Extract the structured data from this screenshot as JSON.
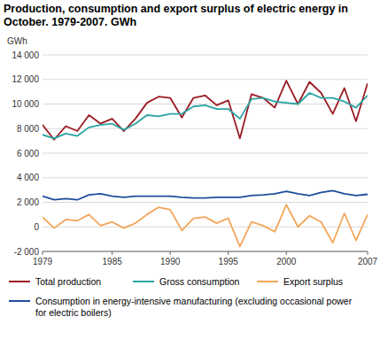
{
  "chart_data": {
    "type": "line",
    "title": "Production, consumption and export surplus of electric energy in October. 1979-2007. GWh",
    "y_label": "GWh",
    "x": [
      1979,
      1980,
      1981,
      1982,
      1983,
      1984,
      1985,
      1986,
      1987,
      1988,
      1989,
      1990,
      1991,
      1992,
      1993,
      1994,
      1995,
      1996,
      1997,
      1998,
      1999,
      2000,
      2001,
      2002,
      2003,
      2004,
      2005,
      2006,
      2007
    ],
    "xlim": [
      1979,
      2007
    ],
    "xticks": [
      1979,
      1985,
      1990,
      1995,
      2000,
      2007
    ],
    "ylim": [
      -2000,
      14000
    ],
    "yticks": [
      {
        "value": -2000,
        "label": "-2 000"
      },
      0,
      {
        "value": 2000,
        "label": "2 000"
      },
      {
        "value": 4000,
        "label": "4 000"
      },
      {
        "value": 6000,
        "label": "6 000"
      },
      {
        "value": 8000,
        "label": "8 000"
      },
      {
        "value": 10000,
        "label": "10 000"
      },
      {
        "value": 12000,
        "label": "12 000"
      },
      {
        "value": 14000,
        "label": "14 000"
      }
    ],
    "grid": true,
    "legend": "bottom",
    "series": [
      {
        "name": "Total production",
        "color": "#9b1b24",
        "values": [
          8300,
          7100,
          8200,
          7800,
          9100,
          8400,
          8800,
          7800,
          8800,
          10100,
          10600,
          10500,
          8900,
          10500,
          10700,
          9900,
          10300,
          7200,
          10800,
          10500,
          9700,
          11900,
          10000,
          11800,
          10900,
          9200,
          11300,
          8600,
          11700
        ]
      },
      {
        "name": "Gross consumption",
        "color": "#2ba3a3",
        "values": [
          7500,
          7200,
          7600,
          7400,
          8100,
          8300,
          8400,
          7900,
          8400,
          9100,
          9000,
          9200,
          9200,
          9800,
          9900,
          9600,
          9600,
          8800,
          10400,
          10500,
          10200,
          10100,
          10000,
          10900,
          10500,
          10500,
          10200,
          9700,
          10700
        ]
      },
      {
        "name": "Export surplus",
        "color": "#f2a65a",
        "values": [
          800,
          -100,
          600,
          500,
          1000,
          100,
          400,
          -100,
          300,
          1000,
          1600,
          1400,
          -300,
          700,
          800,
          300,
          700,
          -1600,
          400,
          100,
          -400,
          1800,
          0,
          900,
          400,
          -1300,
          1100,
          -1100,
          1000
        ]
      },
      {
        "name": "Consumption in energy-intensive manufacturing (excluding occasional power for electric boilers)",
        "color": "#1f4e9c",
        "values": [
          2500,
          2200,
          2300,
          2200,
          2600,
          2700,
          2500,
          2400,
          2500,
          2500,
          2500,
          2500,
          2400,
          2350,
          2350,
          2400,
          2400,
          2400,
          2550,
          2600,
          2700,
          2900,
          2700,
          2550,
          2800,
          2950,
          2700,
          2550,
          2650
        ]
      }
    ]
  }
}
